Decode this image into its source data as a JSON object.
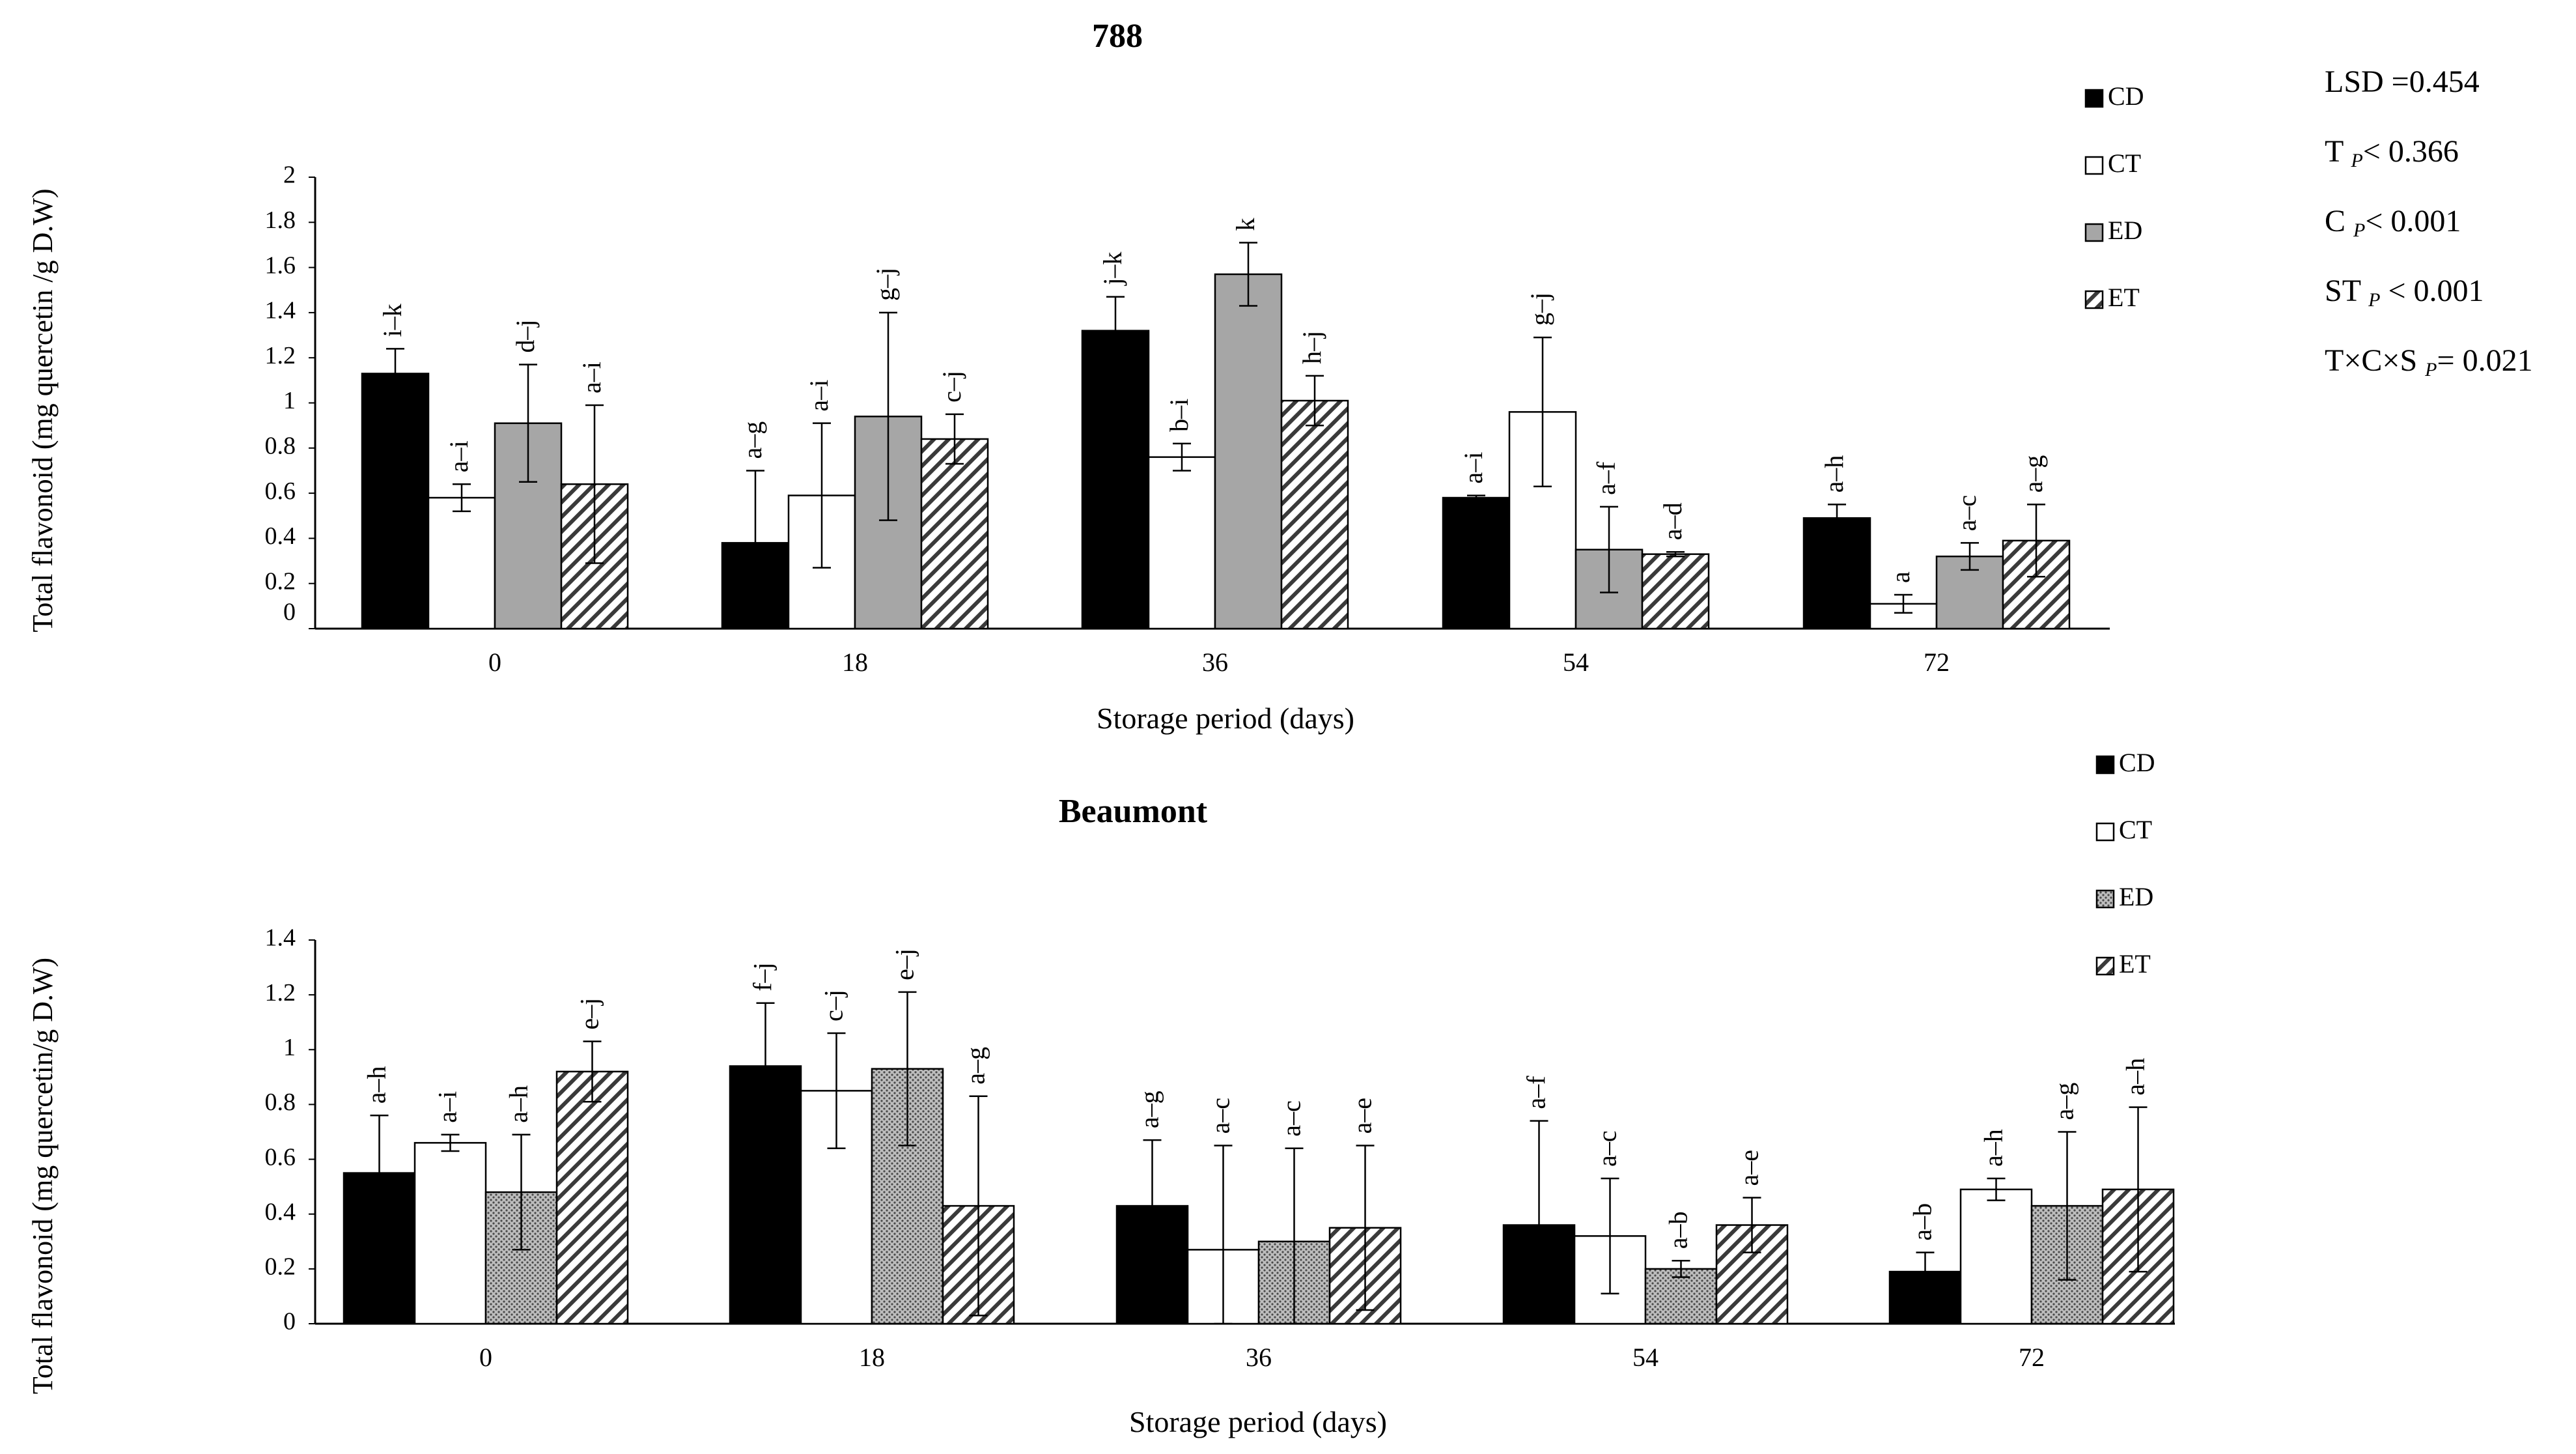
{
  "colors": {
    "CD": "#000000",
    "CT": "#ffffff",
    "ED": "#a6a6a6",
    "ET": "#ffffff",
    "axis": "#000000"
  },
  "stats": {
    "lsd": "LSD =0.454",
    "t_main": "T",
    "t_sub": "P",
    "t_val": "< 0.366",
    "c_main": "C",
    "c_sub": "P",
    "c_val": "< 0.001",
    "st_main": "ST",
    "st_sub": "P",
    "st_val": "< 0.001",
    "txcxs_main": "T×C×S",
    "txcxs_sub": "P",
    "txcxs_val": "= 0.021"
  },
  "chart_data": [
    {
      "type": "bar",
      "title": "788",
      "xlabel": "Storage period (days)",
      "ylabel": "Total flavonoid  (mg quercetin /g D.W)",
      "categories": [
        "0",
        "18",
        "36",
        "54",
        "72"
      ],
      "ylim": [
        0,
        2
      ],
      "yticks": [
        "0",
        "0.2",
        "0.4",
        "0.6",
        "0.8",
        "1",
        "1.2",
        "1.4",
        "1.6",
        "1.8",
        "2"
      ],
      "legend": [
        "CD",
        "CT",
        "ED",
        "ET"
      ],
      "series": [
        {
          "name": "CD",
          "values": [
            1.13,
            0.38,
            1.32,
            0.58,
            0.49
          ],
          "errors": [
            0.11,
            0.32,
            0.15,
            0.01,
            0.06
          ],
          "labels": [
            "i–k",
            "a–g",
            "j–k",
            "a–i",
            "a–h"
          ]
        },
        {
          "name": "CT",
          "values": [
            0.58,
            0.59,
            0.76,
            0.96,
            0.11
          ],
          "errors": [
            0.06,
            0.32,
            0.06,
            0.33,
            0.04
          ],
          "labels": [
            "a–i",
            "a–i",
            "b–i",
            "g–j",
            "a"
          ]
        },
        {
          "name": "ED",
          "values": [
            0.91,
            0.94,
            1.57,
            0.35,
            0.32
          ],
          "errors": [
            0.26,
            0.46,
            0.14,
            0.19,
            0.06
          ],
          "labels": [
            "d–j",
            "g–j",
            "k",
            "a–f",
            "a–c"
          ]
        },
        {
          "name": "ET",
          "values": [
            0.64,
            0.84,
            1.01,
            0.33,
            0.39
          ],
          "errors": [
            0.35,
            0.11,
            0.11,
            0.01,
            0.16
          ],
          "labels": [
            "a–i",
            "c–j",
            "h–j",
            "a–d",
            "a–g"
          ]
        }
      ]
    },
    {
      "type": "bar",
      "title": "Beaumont",
      "xlabel": "Storage period (days)",
      "ylabel": "Total flavonoid  (mg quercetin/g D.W)",
      "categories": [
        "0",
        "18",
        "36",
        "54",
        "72"
      ],
      "ylim": [
        0,
        1.4
      ],
      "yticks": [
        "0",
        "0.2",
        "0.4",
        "0.6",
        "0.8",
        "1",
        "1.2",
        "1.4"
      ],
      "legend": [
        "CD",
        "CT",
        "ED",
        "ET"
      ],
      "series": [
        {
          "name": "CD",
          "values": [
            0.55,
            0.94,
            0.43,
            0.36,
            0.19
          ],
          "errors": [
            0.21,
            0.23,
            0.24,
            0.38,
            0.07
          ],
          "labels": [
            "a–h",
            "f–j",
            "a–g",
            "a–f",
            "a–b"
          ]
        },
        {
          "name": "CT",
          "values": [
            0.66,
            0.85,
            0.27,
            0.32,
            0.49
          ],
          "errors": [
            0.03,
            0.21,
            0.38,
            0.21,
            0.04
          ],
          "labels": [
            "a–i",
            "c–j",
            "a–c",
            "a–c",
            "a–h"
          ]
        },
        {
          "name": "ED",
          "values": [
            0.48,
            0.93,
            0.3,
            0.2,
            0.43
          ],
          "errors": [
            0.21,
            0.28,
            0.34,
            0.03,
            0.27
          ],
          "labels": [
            "a–h",
            "e–j",
            "a–c",
            "a–b",
            "a–g"
          ]
        },
        {
          "name": "ET",
          "values": [
            0.92,
            0.43,
            0.35,
            0.36,
            0.49
          ],
          "errors": [
            0.11,
            0.4,
            0.3,
            0.1,
            0.3
          ],
          "labels": [
            "e–j",
            "a–g",
            "a–e",
            "a–e",
            "a–h"
          ]
        }
      ]
    }
  ]
}
